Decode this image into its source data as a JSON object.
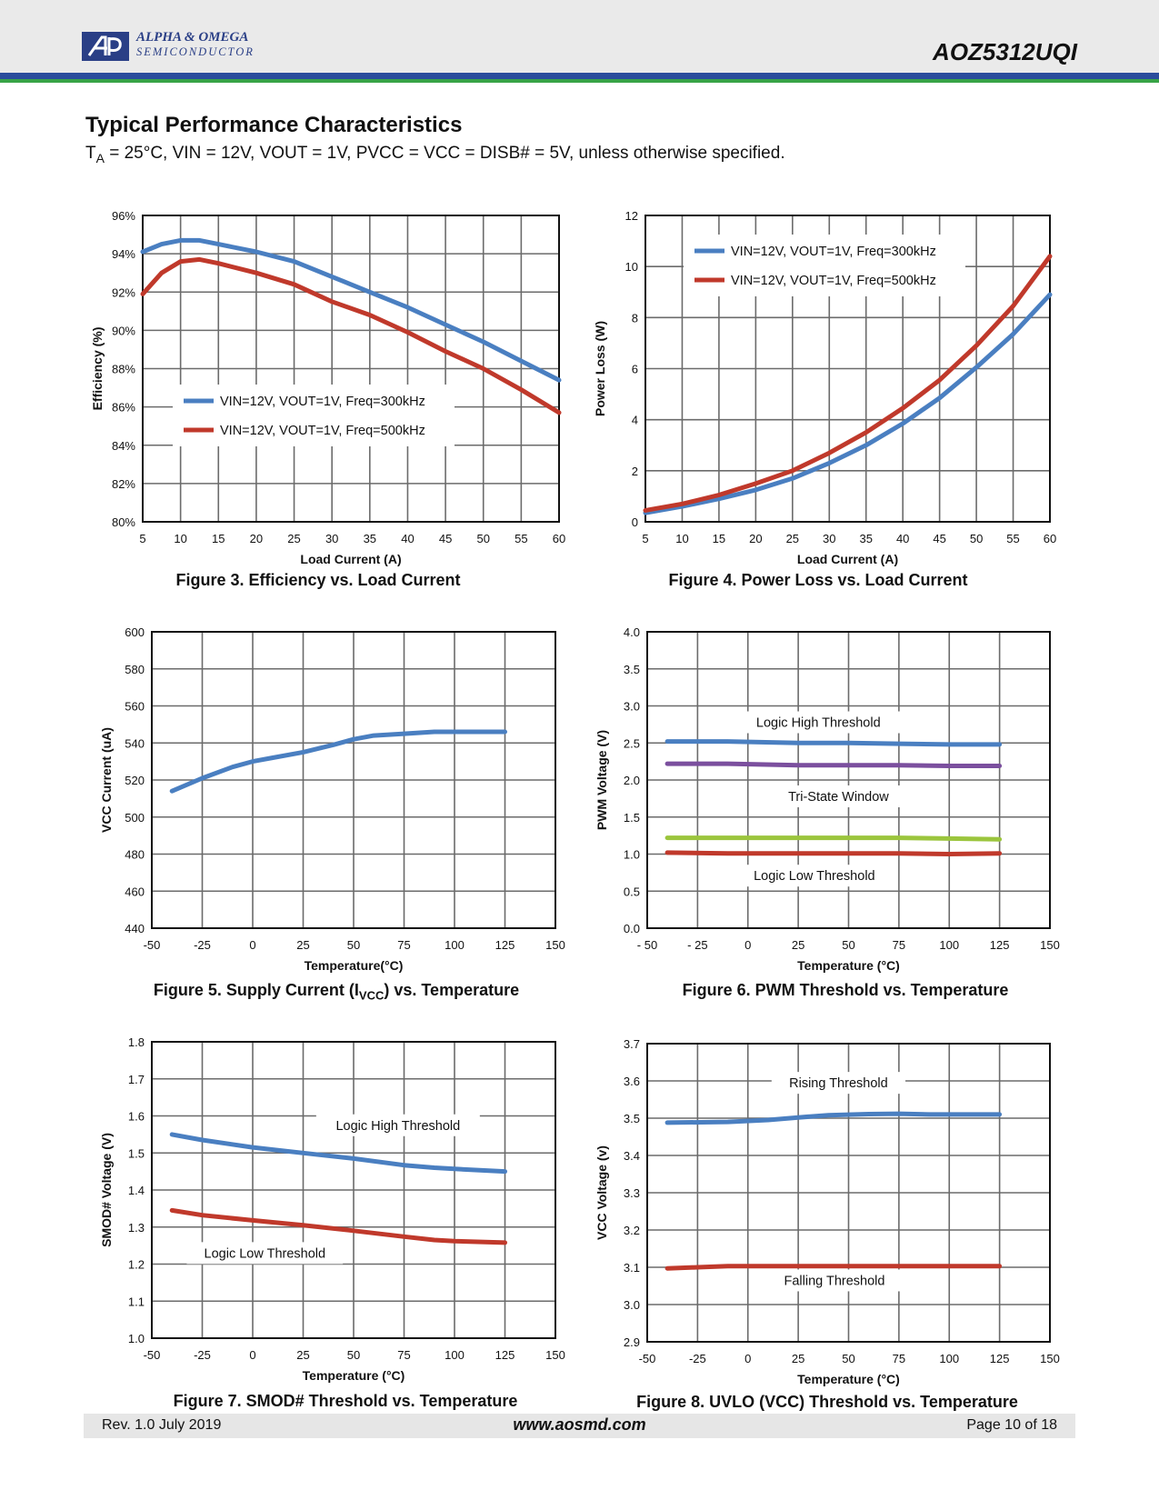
{
  "header": {
    "logo_line1": "ALPHA & OMEGA",
    "logo_line2": "SEMICONDUCTOR",
    "part_number": "AOZ5312UQI"
  },
  "section": {
    "title": "Typical Performance Characteristics",
    "conditions_ta": "T",
    "conditions_sub": "A",
    "conditions_rest": " = 25°C, VIN = 12V, VOUT = 1V, PVCC = VCC = DISB# = 5V, unless otherwise specified."
  },
  "figures": [
    {
      "caption": "Figure 3. Efficiency vs. Load Current"
    },
    {
      "caption": "Figure 4. Power Loss vs. Load Current"
    },
    {
      "caption_pre": "Figure 5. Supply Current (I",
      "caption_sub": "VCC",
      "caption_post": ") vs. Temperature"
    },
    {
      "caption": "Figure 6. PWM Threshold vs. Temperature"
    },
    {
      "caption": "Figure 7. SMOD# Threshold vs. Temperature"
    },
    {
      "caption_pre": "Figure 8. UVLO (VCC) Threshold vs. Temperature"
    }
  ],
  "footer": {
    "revision": "Rev. 1.0 July 2019",
    "url": "www.aosmd.com",
    "page": "Page 10 of 18"
  },
  "colors": {
    "blue": "#4a7fc1",
    "red": "#c0392b",
    "purple": "#7b4f9e",
    "green": "#9bc53d",
    "grid": "#555555"
  },
  "chart_data": [
    {
      "type": "line",
      "xlabel": "Load Current (A)",
      "ylabel": "Efficiency (%)",
      "xlim": [
        5,
        60
      ],
      "ylim": [
        80,
        96
      ],
      "xticks": [
        5,
        10,
        15,
        20,
        25,
        30,
        35,
        40,
        45,
        50,
        55,
        60
      ],
      "xtick_labels": [
        "5",
        "10",
        "15",
        "20",
        "25",
        "30",
        "35",
        "40",
        "45",
        "50",
        "55",
        "60"
      ],
      "yticks": [
        80,
        82,
        84,
        86,
        88,
        90,
        92,
        94,
        96
      ],
      "ytick_labels": [
        "80%",
        "82%",
        "84%",
        "86%",
        "88%",
        "90%",
        "92%",
        "94%",
        "96%"
      ],
      "legend_position": "center-left",
      "series": [
        {
          "name": "VIN=12V, VOUT=1V, Freq=300kHz",
          "color": "#4a7fc1",
          "legend": true,
          "x": [
            5,
            7.5,
            10,
            12.5,
            15,
            20,
            25,
            30,
            35,
            40,
            45,
            50,
            55,
            60
          ],
          "y": [
            94.1,
            94.5,
            94.7,
            94.7,
            94.5,
            94.1,
            93.6,
            92.8,
            92.0,
            91.2,
            90.3,
            89.4,
            88.4,
            87.4
          ]
        },
        {
          "name": "VIN=12V, VOUT=1V, Freq=500kHz",
          "color": "#c0392b",
          "legend": true,
          "x": [
            5,
            7.5,
            10,
            12.5,
            15,
            20,
            25,
            30,
            35,
            40,
            45,
            50,
            55,
            60
          ],
          "y": [
            91.9,
            93.0,
            93.6,
            93.7,
            93.5,
            93.0,
            92.4,
            91.5,
            90.8,
            89.9,
            88.9,
            88.0,
            86.9,
            85.7
          ]
        }
      ]
    },
    {
      "type": "line",
      "xlabel": "Load Current (A)",
      "ylabel": "Power Loss (W)",
      "xlim": [
        5,
        60
      ],
      "ylim": [
        0,
        12
      ],
      "xticks": [
        5,
        10,
        15,
        20,
        25,
        30,
        35,
        40,
        45,
        50,
        55,
        60
      ],
      "xtick_labels": [
        "5",
        "10",
        "15",
        "20",
        "25",
        "30",
        "35",
        "40",
        "45",
        "50",
        "55",
        "60"
      ],
      "yticks": [
        0,
        2,
        4,
        6,
        8,
        10,
        12
      ],
      "ytick_labels": [
        "0",
        "2",
        "4",
        "6",
        "8",
        "10",
        "12"
      ],
      "legend_position": "top-right",
      "series": [
        {
          "name": "VIN=12V, VOUT=1V, Freq=300kHz",
          "color": "#4a7fc1",
          "legend": true,
          "x": [
            5,
            10,
            15,
            20,
            25,
            30,
            35,
            40,
            45,
            50,
            55,
            60
          ],
          "y": [
            0.35,
            0.6,
            0.9,
            1.25,
            1.7,
            2.3,
            3.0,
            3.85,
            4.85,
            6.05,
            7.35,
            8.9
          ]
        },
        {
          "name": "VIN=12V, VOUT=1V, Freq=500kHz",
          "color": "#c0392b",
          "legend": true,
          "x": [
            5,
            10,
            15,
            20,
            25,
            30,
            35,
            40,
            45,
            50,
            55,
            60
          ],
          "y": [
            0.45,
            0.7,
            1.05,
            1.5,
            2.0,
            2.7,
            3.5,
            4.45,
            5.55,
            6.9,
            8.45,
            10.4
          ]
        }
      ]
    },
    {
      "type": "line",
      "xlabel": "Temperature(°C)",
      "ylabel": "VCC  Current (uA)",
      "xlim": [
        -50,
        150
      ],
      "ylim": [
        440,
        600
      ],
      "xticks": [
        -50,
        -25,
        0,
        25,
        50,
        75,
        100,
        125,
        150
      ],
      "xtick_labels": [
        "-50",
        "-25",
        "0",
        "25",
        "50",
        "75",
        "100",
        "125",
        "150"
      ],
      "yticks": [
        440,
        460,
        480,
        500,
        520,
        540,
        560,
        580,
        600
      ],
      "ytick_labels": [
        "440",
        "460",
        "480",
        "500",
        "520",
        "540",
        "560",
        "580",
        "600"
      ],
      "series": [
        {
          "color": "#4a7fc1",
          "x": [
            -40,
            -25,
            -10,
            0,
            10,
            25,
            40,
            50,
            60,
            75,
            90,
            100,
            110,
            125
          ],
          "y": [
            514,
            521,
            527,
            530,
            532,
            535,
            539,
            542,
            544,
            545,
            546,
            546,
            546,
            546
          ]
        }
      ]
    },
    {
      "type": "line",
      "xlabel": "Temperature (°C)",
      "ylabel": "PWM Voltage (V)",
      "xlim": [
        -50,
        150
      ],
      "ylim": [
        0,
        4
      ],
      "xticks": [
        -50,
        -25,
        0,
        25,
        50,
        75,
        100,
        125,
        150
      ],
      "xtick_labels": [
        "- 50",
        "- 25",
        "0",
        "25",
        "50",
        "75",
        "100",
        "125",
        "150"
      ],
      "yticks": [
        0,
        0.5,
        1,
        1.5,
        2,
        2.5,
        3,
        3.5,
        4
      ],
      "ytick_labels": [
        "0.0",
        "0.5",
        "1.0",
        "1.5",
        "2.0",
        "2.5",
        "3.0",
        "3.5",
        "4.0"
      ],
      "annotations": [
        {
          "text": "Logic High Threshold",
          "x": 35,
          "y": 2.73
        },
        {
          "text": "Tri-State Window",
          "x": 45,
          "y": 1.73
        },
        {
          "text": "Logic Low Threshold",
          "x": 33,
          "y": 0.66
        }
      ],
      "series": [
        {
          "color": "#4a7fc1",
          "x": [
            -40,
            -10,
            25,
            50,
            75,
            100,
            125
          ],
          "y": [
            2.52,
            2.52,
            2.5,
            2.5,
            2.49,
            2.48,
            2.48
          ]
        },
        {
          "color": "#7b4f9e",
          "x": [
            -40,
            -10,
            25,
            50,
            75,
            100,
            125
          ],
          "y": [
            2.22,
            2.22,
            2.2,
            2.2,
            2.2,
            2.19,
            2.19
          ]
        },
        {
          "color": "#9bc53d",
          "x": [
            -40,
            -10,
            25,
            50,
            75,
            100,
            125
          ],
          "y": [
            1.22,
            1.22,
            1.22,
            1.22,
            1.22,
            1.21,
            1.2
          ]
        },
        {
          "color": "#c0392b",
          "x": [
            -40,
            -10,
            25,
            50,
            75,
            100,
            125
          ],
          "y": [
            1.02,
            1.01,
            1.01,
            1.01,
            1.01,
            1.0,
            1.01
          ]
        }
      ]
    },
    {
      "type": "line",
      "xlabel": "Temperature (°C)",
      "ylabel": "SMOD# Voltage (V)",
      "xlim": [
        -50,
        150
      ],
      "ylim": [
        1.0,
        1.8
      ],
      "xticks": [
        -50,
        -25,
        0,
        25,
        50,
        75,
        100,
        125,
        150
      ],
      "xtick_labels": [
        "-50",
        "-25",
        "0",
        "25",
        "50",
        "75",
        "100",
        "125",
        "150"
      ],
      "yticks": [
        1.0,
        1.1,
        1.2,
        1.3,
        1.4,
        1.5,
        1.6,
        1.7,
        1.8
      ],
      "ytick_labels": [
        "1.0",
        "1.1",
        "1.2",
        "1.3",
        "1.4",
        "1.5",
        "1.6",
        "1.7",
        "1.8"
      ],
      "annotations": [
        {
          "text": "Logic High Threshold",
          "x": 72,
          "y": 1.565
        },
        {
          "text": "Logic Low Threshold",
          "x": 6,
          "y": 1.22
        }
      ],
      "series": [
        {
          "color": "#4a7fc1",
          "x": [
            -40,
            -25,
            0,
            25,
            50,
            75,
            90,
            100,
            125
          ],
          "y": [
            1.55,
            1.535,
            1.515,
            1.5,
            1.485,
            1.467,
            1.46,
            1.457,
            1.45
          ]
        },
        {
          "color": "#c0392b",
          "x": [
            -40,
            -25,
            0,
            25,
            50,
            75,
            90,
            100,
            125
          ],
          "y": [
            1.345,
            1.332,
            1.318,
            1.305,
            1.29,
            1.274,
            1.265,
            1.262,
            1.258
          ]
        }
      ]
    },
    {
      "type": "line",
      "xlabel": "Temperature (°C)",
      "ylabel": "VCC Voltage (v)",
      "xlim": [
        -50,
        150
      ],
      "ylim": [
        2.9,
        3.7
      ],
      "xticks": [
        -50,
        -25,
        0,
        25,
        50,
        75,
        100,
        125,
        150
      ],
      "xtick_labels": [
        "-50",
        "-25",
        "0",
        "25",
        "50",
        "75",
        "100",
        "125",
        "150"
      ],
      "yticks": [
        2.9,
        3.0,
        3.1,
        3.2,
        3.3,
        3.4,
        3.5,
        3.6,
        3.7
      ],
      "ytick_labels": [
        "2.9",
        "3.0",
        "3.1",
        "3.2",
        "3.3",
        "3.4",
        "3.5",
        "3.6",
        "3.7"
      ],
      "annotations": [
        {
          "text": "Rising Threshold",
          "x": 45,
          "y": 3.585
        },
        {
          "text": "Falling Threshold",
          "x": 43,
          "y": 3.055
        }
      ],
      "series": [
        {
          "color": "#4a7fc1",
          "x": [
            -40,
            -10,
            10,
            25,
            40,
            60,
            75,
            90,
            110,
            125
          ],
          "y": [
            3.488,
            3.49,
            3.495,
            3.502,
            3.508,
            3.511,
            3.512,
            3.51,
            3.51,
            3.51
          ]
        },
        {
          "color": "#c0392b",
          "x": [
            -40,
            -25,
            -10,
            0,
            25,
            50,
            75,
            100,
            125
          ],
          "y": [
            3.097,
            3.1,
            3.103,
            3.103,
            3.103,
            3.103,
            3.103,
            3.103,
            3.103
          ]
        }
      ]
    }
  ]
}
